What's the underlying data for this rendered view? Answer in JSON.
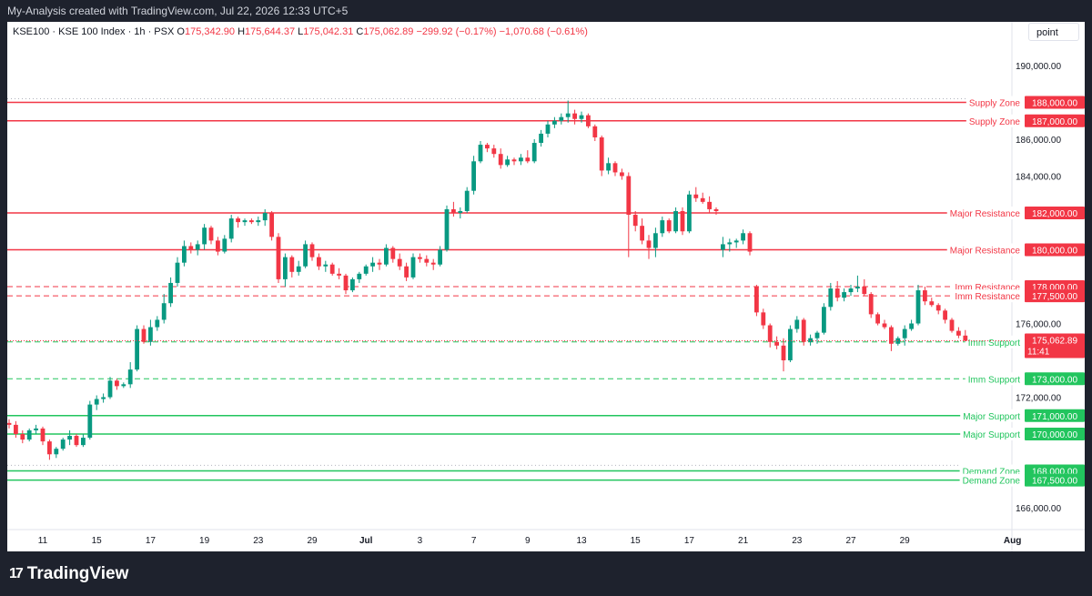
{
  "header": {
    "title": "My-Analysis created with TradingView.com, Jul 22, 2026 12:33 UTC+5"
  },
  "legend": {
    "symbol": "KSE100 · KSE 100 Index · 1h · PSX",
    "open_label": "O",
    "open": "175,342.90",
    "high_label": "H",
    "high": "175,644.37",
    "low_label": "L",
    "low": "175,042.31",
    "close_label": "C",
    "close": "175,062.89",
    "change": "−299.92 (−0.17%)",
    "change2": "−1,070.68 (−0.61%)"
  },
  "toolbar": {
    "point_label": "point"
  },
  "footer": {
    "brand": "TradingView",
    "brand_mark": "17"
  },
  "colors": {
    "up": "#089981",
    "down": "#f23645",
    "resistance": "#f23645",
    "support": "#22c55e",
    "price_tag": "#f23645"
  },
  "chart_data": {
    "type": "candlestick",
    "title": "KSE100 · KSE 100 Index · 1h · PSX",
    "ylim": [
      165000,
      192500
    ],
    "y_ticks": [
      "190,000.00",
      "186,000.00",
      "184,000.00",
      "176,000.00",
      "172,000.00",
      "166,000.00"
    ],
    "y_tick_values": [
      190000,
      186000,
      184000,
      176000,
      172000,
      166000
    ],
    "x_ticks": [
      "11",
      "15",
      "17",
      "19",
      "23",
      "29",
      "Jul",
      "3",
      "7",
      "9",
      "13",
      "15",
      "17",
      "21",
      "23",
      "27",
      "29",
      "Aug"
    ],
    "x_tick_index": [
      5,
      13,
      21,
      29,
      37,
      45,
      53,
      61,
      69,
      77,
      85,
      93,
      101,
      109,
      117,
      125,
      133,
      149
    ],
    "last_price": {
      "value": 175062.89,
      "label": "175,062.89",
      "countdown": "11:41"
    },
    "levels": [
      {
        "label": "Supply Zone",
        "value": 188000,
        "value_label": "188,000.00",
        "kind": "resistance",
        "style": "solid"
      },
      {
        "label": "Supply Zone",
        "value": 187000,
        "value_label": "187,000.00",
        "kind": "resistance",
        "style": "solid"
      },
      {
        "label": "Major Resistance",
        "value": 182000,
        "value_label": "182,000.00",
        "kind": "resistance",
        "style": "solid"
      },
      {
        "label": "Major Resistance",
        "value": 180000,
        "value_label": "180,000.00",
        "kind": "resistance",
        "style": "solid"
      },
      {
        "label": "Imm Resistance",
        "value": 178000,
        "value_label": "178,000.00",
        "kind": "resistance",
        "style": "dashed"
      },
      {
        "label": "Imm Resistance",
        "value": 177500,
        "value_label": "177,500.00",
        "kind": "resistance",
        "style": "dashed"
      },
      {
        "label": "Imm Support",
        "value": 175000,
        "value_label": "175,000.00",
        "kind": "support",
        "style": "dashed"
      },
      {
        "label": "Imm Support",
        "value": 173000,
        "value_label": "173,000.00",
        "kind": "support",
        "style": "dashed"
      },
      {
        "label": "Major Support",
        "value": 171000,
        "value_label": "171,000.00",
        "kind": "support",
        "style": "solid"
      },
      {
        "label": "Major Support",
        "value": 170000,
        "value_label": "170,000.00",
        "kind": "support",
        "style": "solid"
      },
      {
        "label": "Demand Zone",
        "value": 168000,
        "value_label": "168,000.00",
        "kind": "support",
        "style": "solid"
      },
      {
        "label": "Demand Zone",
        "value": 167500,
        "value_label": "167,500.00",
        "kind": "support",
        "style": "solid"
      }
    ],
    "candles": [
      [
        170600,
        170800,
        170300,
        170500
      ],
      [
        170500,
        170700,
        169800,
        170000
      ],
      [
        170000,
        170200,
        169500,
        169700
      ],
      [
        169700,
        170300,
        169600,
        170200
      ],
      [
        170200,
        170500,
        170000,
        170300
      ],
      [
        170300,
        170400,
        169400,
        169600
      ],
      [
        169600,
        169700,
        168600,
        168900
      ],
      [
        168900,
        169300,
        168700,
        169200
      ],
      [
        169200,
        169800,
        169100,
        169700
      ],
      [
        169700,
        170200,
        169400,
        169900
      ],
      [
        169900,
        170000,
        169300,
        169400
      ],
      [
        169400,
        170000,
        169300,
        169800
      ],
      [
        169800,
        171800,
        169700,
        171600
      ],
      [
        171600,
        172100,
        171300,
        171900
      ],
      [
        171900,
        172200,
        171700,
        172000
      ],
      [
        172000,
        173100,
        171900,
        172900
      ],
      [
        172900,
        173000,
        172400,
        172600
      ],
      [
        172600,
        172800,
        172500,
        172700
      ],
      [
        172700,
        173900,
        172500,
        173500
      ],
      [
        173500,
        175900,
        173400,
        175700
      ],
      [
        175700,
        175900,
        174900,
        175000
      ],
      [
        175000,
        176200,
        174800,
        175800
      ],
      [
        175800,
        176400,
        175600,
        176200
      ],
      [
        176200,
        177600,
        176000,
        177100
      ],
      [
        177100,
        178500,
        176900,
        178200
      ],
      [
        178200,
        179600,
        178000,
        179300
      ],
      [
        179300,
        180500,
        179100,
        180200
      ],
      [
        180200,
        180400,
        179800,
        180000
      ],
      [
        180000,
        180500,
        179700,
        180300
      ],
      [
        180300,
        181400,
        180000,
        181200
      ],
      [
        181200,
        181300,
        180300,
        180500
      ],
      [
        180500,
        180700,
        179700,
        179900
      ],
      [
        179900,
        180800,
        179800,
        180600
      ],
      [
        180600,
        181900,
        180400,
        181700
      ],
      [
        181700,
        181800,
        181200,
        181500
      ],
      [
        181500,
        181700,
        181300,
        181600
      ],
      [
        181600,
        181700,
        181400,
        181500
      ],
      [
        181500,
        181800,
        181300,
        181600
      ],
      [
        181600,
        182200,
        181300,
        182000
      ],
      [
        182000,
        182100,
        180500,
        180700
      ],
      [
        180700,
        180900,
        178200,
        178400
      ],
      [
        178400,
        179800,
        178000,
        179600
      ],
      [
        179600,
        179700,
        178500,
        178800
      ],
      [
        178800,
        179400,
        178600,
        179100
      ],
      [
        179100,
        180500,
        179000,
        180300
      ],
      [
        180300,
        180400,
        179400,
        179600
      ],
      [
        179600,
        179800,
        178900,
        179100
      ],
      [
        179100,
        179400,
        178800,
        179200
      ],
      [
        179200,
        179300,
        178600,
        178700
      ],
      [
        178700,
        179000,
        178400,
        178600
      ],
      [
        178600,
        178700,
        177600,
        177800
      ],
      [
        177800,
        178500,
        177700,
        178400
      ],
      [
        178400,
        178800,
        178200,
        178700
      ],
      [
        178700,
        179200,
        178600,
        179100
      ],
      [
        179100,
        179600,
        178800,
        179300
      ],
      [
        179300,
        179500,
        178900,
        179200
      ],
      [
        179200,
        180300,
        179100,
        180100
      ],
      [
        180100,
        180200,
        179300,
        179500
      ],
      [
        179500,
        179800,
        178900,
        179100
      ],
      [
        179100,
        179300,
        178300,
        178500
      ],
      [
        178500,
        179800,
        178400,
        179600
      ],
      [
        179600,
        179800,
        179300,
        179500
      ],
      [
        179500,
        179700,
        179100,
        179300
      ],
      [
        179300,
        179500,
        178900,
        179200
      ],
      [
        179200,
        180200,
        179100,
        180000
      ],
      [
        180000,
        182400,
        179900,
        182200
      ],
      [
        182200,
        182600,
        181800,
        182000
      ],
      [
        182000,
        182300,
        181700,
        182100
      ],
      [
        182100,
        183400,
        182000,
        183200
      ],
      [
        183200,
        185100,
        183000,
        184800
      ],
      [
        184800,
        185900,
        184700,
        185700
      ],
      [
        185700,
        185800,
        185300,
        185500
      ],
      [
        185500,
        185700,
        185000,
        185200
      ],
      [
        185200,
        185500,
        184400,
        184600
      ],
      [
        184600,
        185100,
        184500,
        184900
      ],
      [
        184900,
        185000,
        184600,
        184800
      ],
      [
        184800,
        185200,
        184600,
        185000
      ],
      [
        185000,
        185400,
        184700,
        184800
      ],
      [
        184800,
        186000,
        184700,
        185800
      ],
      [
        185800,
        186500,
        185600,
        186300
      ],
      [
        186300,
        187000,
        186100,
        186800
      ],
      [
        186800,
        187200,
        186600,
        187000
      ],
      [
        187000,
        187400,
        186800,
        187200
      ],
      [
        187200,
        188100,
        186900,
        187400
      ],
      [
        187400,
        187600,
        186800,
        187100
      ],
      [
        187100,
        187500,
        186900,
        187300
      ],
      [
        187300,
        187400,
        186600,
        186700
      ],
      [
        186700,
        186800,
        185900,
        186100
      ],
      [
        186100,
        186200,
        184000,
        184300
      ],
      [
        184300,
        185000,
        184100,
        184700
      ],
      [
        184700,
        184800,
        184000,
        184200
      ],
      [
        184200,
        184400,
        183800,
        184000
      ],
      [
        184000,
        184200,
        179600,
        181900
      ],
      [
        181900,
        182100,
        181000,
        181300
      ],
      [
        181300,
        181700,
        180300,
        180500
      ],
      [
        180500,
        180800,
        179500,
        180100
      ],
      [
        180100,
        181200,
        179600,
        180900
      ],
      [
        180900,
        181800,
        180700,
        181600
      ],
      [
        181600,
        181700,
        180900,
        181000
      ],
      [
        181000,
        182300,
        180900,
        182100
      ],
      [
        182100,
        182300,
        180800,
        181000
      ],
      [
        181000,
        183200,
        180900,
        183000
      ],
      [
        183000,
        183400,
        182600,
        182800
      ],
      [
        182800,
        183100,
        182500,
        182600
      ],
      [
        182600,
        182900,
        182000,
        182200
      ],
      [
        182200,
        182300,
        181900,
        182100
      ],
      [
        180000,
        180700,
        179600,
        180300
      ],
      [
        180300,
        180600,
        179900,
        180400
      ],
      [
        180400,
        180600,
        180100,
        180500
      ],
      [
        180500,
        181100,
        180300,
        180900
      ],
      [
        180900,
        181000,
        179700,
        179900
      ],
      [
        178000,
        178100,
        176400,
        176600
      ],
      [
        176600,
        176800,
        175700,
        175900
      ],
      [
        175900,
        176000,
        174700,
        175000
      ],
      [
        175000,
        175300,
        174600,
        174800
      ],
      [
        174800,
        175200,
        173400,
        174000
      ],
      [
        174000,
        175900,
        173900,
        175700
      ],
      [
        175700,
        176400,
        175500,
        176200
      ],
      [
        176200,
        176300,
        174800,
        175000
      ],
      [
        175000,
        175400,
        174800,
        175200
      ],
      [
        175200,
        175600,
        174900,
        175500
      ],
      [
        175500,
        177100,
        175400,
        176900
      ],
      [
        176900,
        178200,
        176700,
        177900
      ],
      [
        177900,
        178300,
        177200,
        177400
      ],
      [
        177400,
        177900,
        177200,
        177700
      ],
      [
        177700,
        178100,
        177500,
        177900
      ],
      [
        177900,
        178600,
        177700,
        178000
      ],
      [
        178000,
        178400,
        177500,
        177600
      ],
      [
        177600,
        177700,
        176300,
        176500
      ],
      [
        176500,
        176600,
        175900,
        176000
      ],
      [
        176000,
        176200,
        175700,
        175800
      ],
      [
        175800,
        175900,
        174500,
        174900
      ],
      [
        174900,
        175300,
        174800,
        175200
      ],
      [
        175200,
        175900,
        174800,
        175700
      ],
      [
        175700,
        176200,
        175600,
        176000
      ],
      [
        176000,
        178100,
        175900,
        177800
      ],
      [
        177800,
        178000,
        177000,
        177200
      ],
      [
        177200,
        177400,
        176900,
        177000
      ],
      [
        177000,
        177100,
        176500,
        176700
      ],
      [
        176700,
        176800,
        176000,
        176200
      ],
      [
        176200,
        176300,
        175500,
        175600
      ],
      [
        175600,
        175800,
        175200,
        175343
      ],
      [
        175343,
        175644,
        175042,
        175063
      ]
    ]
  }
}
